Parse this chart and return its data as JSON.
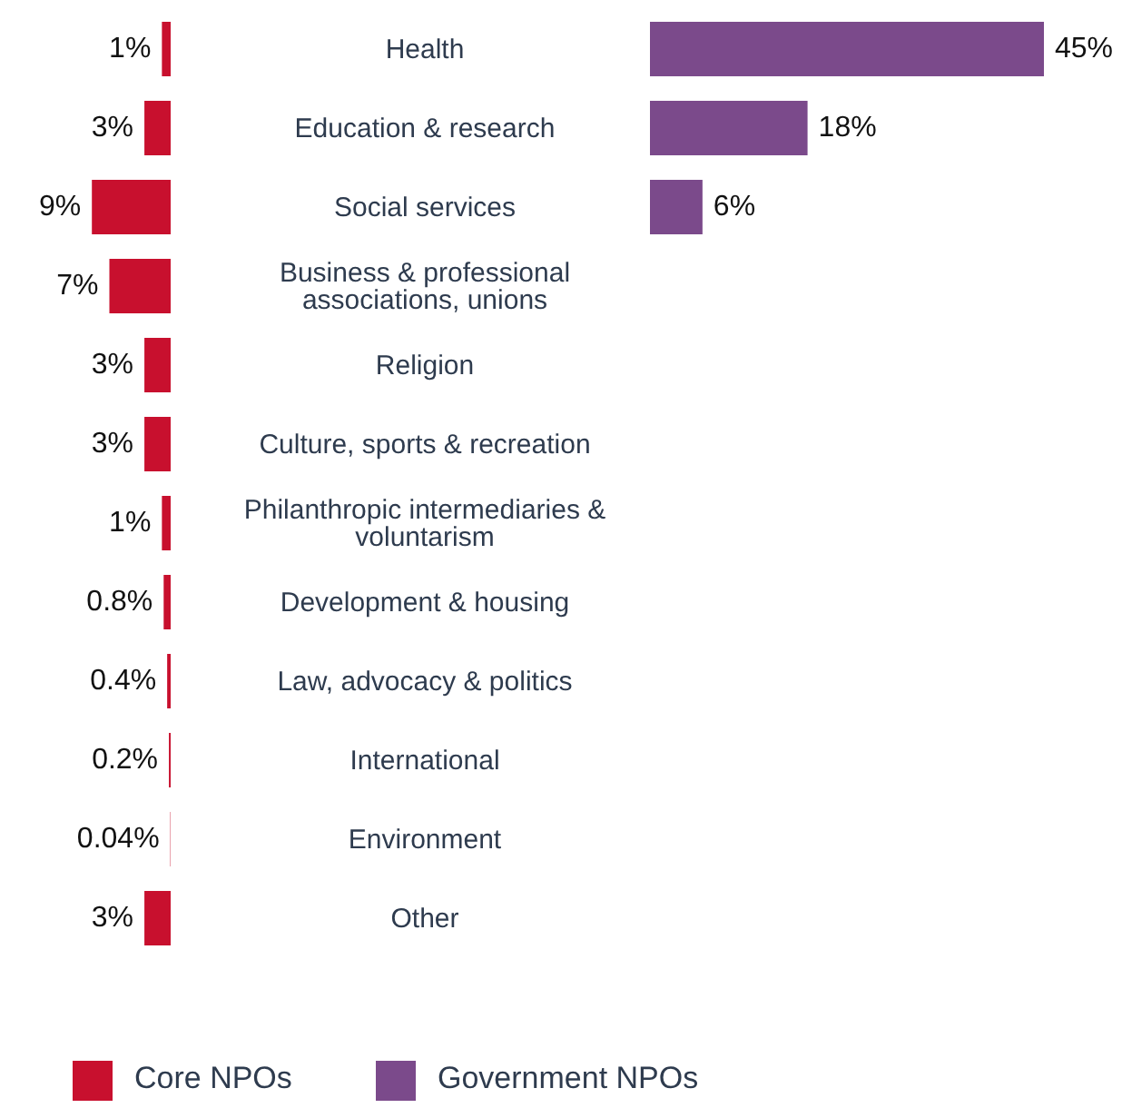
{
  "chart_data": [
    {
      "type": "bar",
      "orientation": "horizontal",
      "categories": [
        "Health",
        "Education & research",
        "Social services",
        "Business & professional associations, unions",
        "Religion",
        "Culture, sports & recreation",
        "Philanthropic intermediaries & voluntarism",
        "Development & housing",
        "Law, advocacy & politics",
        "International",
        "Environment",
        "Other"
      ],
      "series": [
        {
          "name": "Core NPOs",
          "color": "#c8102e",
          "values": [
            1,
            3,
            9,
            7,
            3,
            3,
            1,
            0.8,
            0.4,
            0.2,
            0.04,
            3
          ],
          "value_labels": [
            "1%",
            "3%",
            "9%",
            "7%",
            "3%",
            "3%",
            "1%",
            "0.8%",
            "0.4%",
            "0.2%",
            "0.04%",
            "3%"
          ]
        }
      ],
      "legend": "bottom",
      "tick_labels": "y"
    },
    {
      "type": "bar",
      "orientation": "horizontal",
      "categories": [
        null,
        null,
        null,
        null,
        null,
        null,
        null,
        null,
        null,
        null,
        null,
        null
      ],
      "series": [
        {
          "name": "Government NPOs",
          "color": "#7b4a8b",
          "values": [
            45,
            18,
            6,
            null,
            null,
            null,
            null,
            null,
            null,
            null,
            null,
            null
          ],
          "value_labels": [
            "45%",
            "18%",
            "6%",
            null,
            null,
            null,
            null,
            null,
            null,
            null,
            null,
            null
          ]
        }
      ],
      "legend": "bottom",
      "tick_labels": false
    }
  ]
}
